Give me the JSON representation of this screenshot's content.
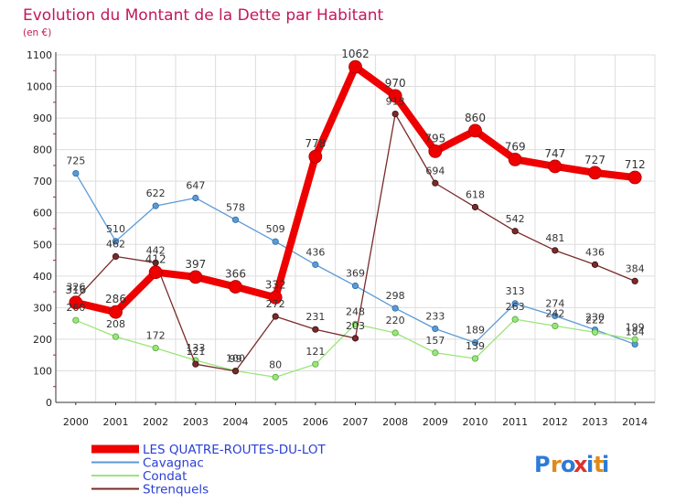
{
  "title": "Evolution du Montant de la Dette par Habitant",
  "subtitle": "(en €)",
  "logo_text": "Proxiti",
  "chart_data": {
    "type": "line",
    "x": [
      "2000",
      "2001",
      "2002",
      "2003",
      "2004",
      "2005",
      "2006",
      "2007",
      "2008",
      "2009",
      "2010",
      "2011",
      "2012",
      "2013",
      "2014"
    ],
    "ylim": [
      0,
      1100
    ],
    "yticks": [
      0,
      100,
      200,
      300,
      400,
      500,
      600,
      700,
      800,
      900,
      1000,
      1100
    ],
    "grid": true,
    "legend_position": "bottom-left",
    "series": [
      {
        "name": "LES QUATRE-ROUTES-DU-LOT",
        "color": "#ee0000",
        "values": [
          316,
          286,
          412,
          397,
          366,
          332,
          778,
          1062,
          970,
          795,
          860,
          769,
          747,
          727,
          712
        ]
      },
      {
        "name": "Cavagnac",
        "color": "#5b9bd5",
        "values": [
          725,
          510,
          622,
          647,
          578,
          509,
          436,
          369,
          298,
          233,
          189,
          313,
          274,
          230,
          184
        ]
      },
      {
        "name": "Condat",
        "color": "#99e67a",
        "values": [
          260,
          208,
          172,
          133,
          100,
          80,
          121,
          248,
          220,
          157,
          139,
          263,
          242,
          222,
          199
        ]
      },
      {
        "name": "Strenquels",
        "color": "#7a2a2a",
        "values": [
          326,
          462,
          442,
          121,
          99,
          272,
          231,
          203,
          913,
          694,
          618,
          542,
          481,
          436,
          384
        ]
      }
    ]
  }
}
